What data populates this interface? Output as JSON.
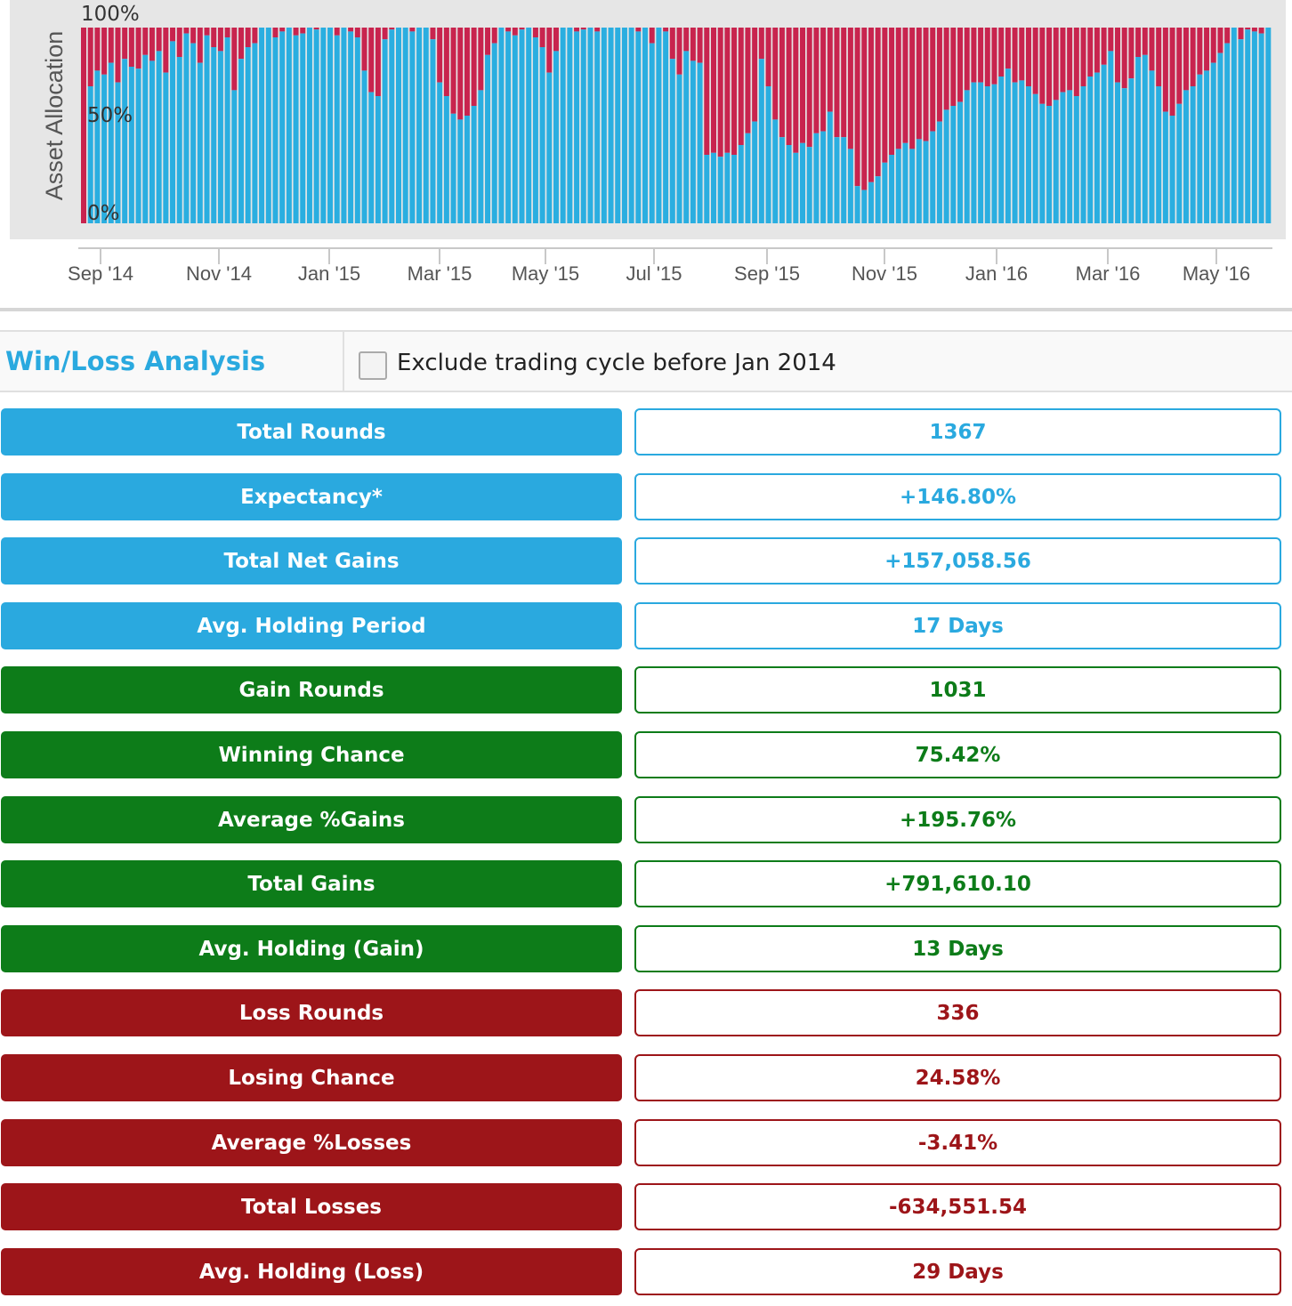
{
  "chart_data": {
    "type": "area",
    "stacked": "percent",
    "ylabel": "Asset Allocation",
    "y_ticks": [
      "100%",
      "50%",
      "0%"
    ],
    "x_tick_labels": [
      "Sep '14",
      "Nov '14",
      "Jan '15",
      "Mar '15",
      "May '15",
      "Jul '15",
      "Sep '15",
      "Nov '15",
      "Jan '16",
      "Mar '16",
      "May '16"
    ],
    "ylim": [
      0,
      100
    ],
    "colors": {
      "lower": "#2aaee0",
      "upper": "#c8244e",
      "plot_bg": "#e6e6e6"
    },
    "series_lower_percent": [
      0,
      70,
      78,
      76,
      82,
      72,
      84,
      80,
      79,
      86,
      83,
      88,
      77,
      93,
      85,
      97,
      92,
      82,
      96,
      90,
      88,
      95,
      68,
      84,
      90,
      92,
      100,
      100,
      95,
      98,
      100,
      96,
      97,
      100,
      99,
      100,
      100,
      96,
      100,
      98,
      95,
      78,
      67,
      65,
      94,
      99,
      100,
      100,
      98,
      100,
      100,
      94,
      72,
      65,
      56,
      53,
      55,
      60,
      68,
      86,
      92,
      100,
      98,
      96,
      99,
      100,
      95,
      90,
      77,
      88,
      100,
      100,
      98,
      99,
      100,
      98,
      100,
      100,
      100,
      100,
      100,
      98,
      100,
      92,
      100,
      98,
      84,
      76,
      88,
      83,
      82,
      35,
      36,
      34,
      36,
      35,
      40,
      46,
      52,
      84,
      70,
      53,
      44,
      40,
      36,
      41,
      39,
      46,
      47,
      57,
      44,
      44,
      38,
      19,
      17,
      21,
      24,
      31,
      35,
      38,
      41,
      38,
      43,
      42,
      47,
      52,
      58,
      60,
      62,
      68,
      72,
      72,
      70,
      71,
      75,
      79,
      72,
      73,
      70,
      66,
      61,
      60,
      63,
      67,
      68,
      65,
      70,
      75,
      77,
      81,
      88,
      72,
      69,
      74,
      85,
      86,
      78,
      70,
      57,
      55,
      61,
      68,
      70,
      76,
      78,
      82,
      87,
      92,
      100,
      94,
      99,
      98,
      97,
      100
    ]
  },
  "winloss": {
    "title": "Win/Loss Analysis",
    "exclude_label": "Exclude trading cycle before Jan 2014",
    "exclude_checked": false,
    "colors": {
      "summary": "#2aa9df",
      "gain": "#0d7c19",
      "loss": "#9d1519"
    },
    "rows": [
      {
        "label": "Total Rounds",
        "value": "1367",
        "group": "summary"
      },
      {
        "label": "Expectancy*",
        "value": "+146.80%",
        "group": "summary"
      },
      {
        "label": "Total Net Gains",
        "value": "+157,058.56",
        "group": "summary"
      },
      {
        "label": "Avg. Holding Period",
        "value": "17 Days",
        "group": "summary"
      },
      {
        "label": "Gain Rounds",
        "value": "1031",
        "group": "gain"
      },
      {
        "label": "Winning Chance",
        "value": "75.42%",
        "group": "gain"
      },
      {
        "label": "Average %Gains",
        "value": "+195.76%",
        "group": "gain"
      },
      {
        "label": "Total Gains",
        "value": "+791,610.10",
        "group": "gain"
      },
      {
        "label": "Avg. Holding (Gain)",
        "value": "13 Days",
        "group": "gain"
      },
      {
        "label": "Loss Rounds",
        "value": "336",
        "group": "loss"
      },
      {
        "label": "Losing Chance",
        "value": "24.58%",
        "group": "loss"
      },
      {
        "label": "Average %Losses",
        "value": "-3.41%",
        "group": "loss"
      },
      {
        "label": "Total Losses",
        "value": "-634,551.54",
        "group": "loss"
      },
      {
        "label": "Avg. Holding (Loss)",
        "value": "29 Days",
        "group": "loss"
      }
    ]
  }
}
